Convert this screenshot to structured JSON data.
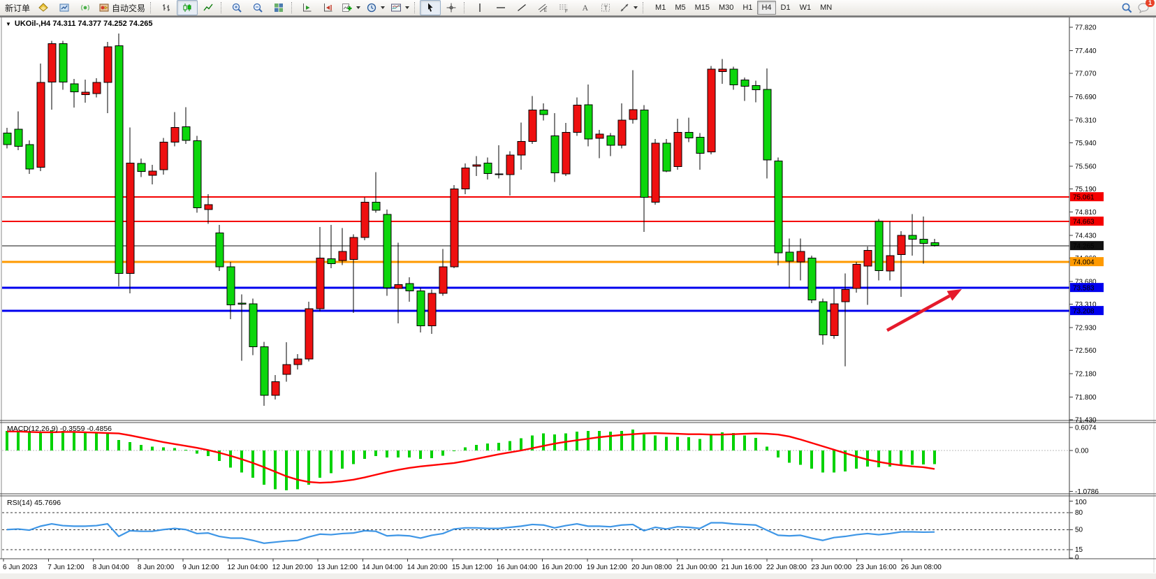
{
  "toolbar": {
    "new_order": "新订单",
    "autotrading": "自动交易",
    "notification_badge": "1",
    "timeframes": [
      {
        "label": "M1"
      },
      {
        "label": "M5"
      },
      {
        "label": "M15"
      },
      {
        "label": "M30"
      },
      {
        "label": "H1"
      },
      {
        "label": "H4",
        "active": true
      },
      {
        "label": "D1"
      },
      {
        "label": "W1"
      },
      {
        "label": "MN"
      }
    ]
  },
  "chart": {
    "title": "UKOil-,H4 74.311 74.377 74.252 74.265",
    "symbol": "UKOil-",
    "timeframe": "H4",
    "ohlc": {
      "open": "74.311",
      "high": "74.377",
      "low": "74.252",
      "close": "74.265"
    }
  },
  "price_axis": {
    "ticks": [
      "77.820",
      "77.440",
      "77.070",
      "76.690",
      "76.310",
      "75.940",
      "75.560",
      "75.190",
      "74.810",
      "74.430",
      "74.060",
      "73.680",
      "73.310",
      "72.930",
      "72.560",
      "72.180",
      "71.800",
      "71.430"
    ]
  },
  "overlay_lines": [
    {
      "price": 75.061,
      "label": "75.061",
      "color": "#f50000",
      "width": 2
    },
    {
      "price": 74.663,
      "label": "74.663",
      "color": "#f50000",
      "width": 2
    },
    {
      "price": 74.265,
      "label": "74.265",
      "color": "#111111",
      "width": 1
    },
    {
      "price": 74.004,
      "label": "74.004",
      "color": "#ff9a00",
      "width": 3
    },
    {
      "price": 73.583,
      "label": "73.583",
      "color": "#0000ee",
      "width": 3
    },
    {
      "price": 73.208,
      "label": "73.208",
      "color": "#0000ee",
      "width": 3
    }
  ],
  "time_axis": {
    "labels": [
      "6 Jun 2023",
      "7 Jun 12:00",
      "8 Jun 04:00",
      "8 Jun 20:00",
      "9 Jun 12:00",
      "12 Jun 04:00",
      "12 Jun 20:00",
      "13 Jun 12:00",
      "14 Jun 04:00",
      "14 Jun 20:00",
      "15 Jun 12:00",
      "16 Jun 04:00",
      "16 Jun 20:00",
      "19 Jun 12:00",
      "20 Jun 08:00",
      "21 Jun 00:00",
      "21 Jun 16:00",
      "22 Jun 08:00",
      "23 Jun 00:00",
      "23 Jun 16:00",
      "26 Jun 08:00"
    ]
  },
  "chart_data": {
    "type": "candlestick",
    "title": "UKOil- H4",
    "ylim": [
      71.43,
      77.82
    ],
    "colors": {
      "bull": "#ee1010",
      "bear": "#0cd60c",
      "outline": "#000000"
    },
    "candles": [
      [
        76.1,
        76.18,
        75.85,
        75.91
      ],
      [
        76.16,
        76.45,
        75.82,
        75.88
      ],
      [
        75.91,
        75.98,
        75.43,
        75.51
      ],
      [
        75.54,
        77.23,
        75.48,
        76.92
      ],
      [
        76.93,
        77.6,
        76.48,
        77.55
      ],
      [
        77.55,
        77.6,
        76.8,
        76.93
      ],
      [
        76.9,
        76.98,
        76.51,
        76.77
      ],
      [
        76.72,
        76.97,
        76.59,
        76.76
      ],
      [
        76.74,
        76.99,
        76.68,
        76.92
      ],
      [
        76.92,
        77.58,
        76.42,
        77.5
      ],
      [
        77.52,
        77.72,
        73.6,
        73.81
      ],
      [
        73.81,
        76.19,
        73.49,
        75.61
      ],
      [
        75.6,
        75.68,
        75.38,
        75.47
      ],
      [
        75.41,
        75.58,
        75.26,
        75.48
      ],
      [
        75.5,
        76.02,
        75.42,
        75.95
      ],
      [
        75.95,
        76.44,
        75.88,
        76.19
      ],
      [
        76.2,
        76.52,
        75.92,
        75.98
      ],
      [
        75.97,
        76.05,
        74.8,
        74.88
      ],
      [
        74.85,
        75.1,
        74.62,
        74.93
      ],
      [
        74.47,
        74.6,
        73.85,
        73.92
      ],
      [
        73.92,
        74.0,
        73.07,
        73.3
      ],
      [
        73.33,
        73.47,
        72.39,
        73.31
      ],
      [
        73.32,
        73.4,
        72.48,
        72.62
      ],
      [
        72.62,
        72.7,
        71.66,
        71.83
      ],
      [
        71.83,
        72.16,
        71.76,
        72.05
      ],
      [
        72.17,
        72.69,
        72.05,
        72.33
      ],
      [
        72.33,
        72.5,
        72.25,
        72.42
      ],
      [
        72.42,
        73.35,
        72.38,
        73.24
      ],
      [
        73.24,
        74.57,
        73.2,
        74.06
      ],
      [
        74.05,
        74.6,
        73.9,
        73.97
      ],
      [
        74.02,
        74.55,
        73.95,
        74.17
      ],
      [
        74.04,
        74.45,
        73.17,
        74.4
      ],
      [
        74.4,
        75.05,
        74.35,
        74.97
      ],
      [
        74.97,
        75.46,
        74.8,
        74.84
      ],
      [
        74.77,
        74.85,
        73.45,
        73.58
      ],
      [
        73.57,
        74.31,
        73.0,
        73.63
      ],
      [
        73.65,
        73.75,
        73.35,
        73.53
      ],
      [
        73.53,
        73.58,
        72.85,
        72.96
      ],
      [
        72.96,
        73.55,
        72.83,
        73.49
      ],
      [
        73.49,
        74.21,
        73.45,
        73.92
      ],
      [
        73.92,
        75.25,
        73.9,
        75.19
      ],
      [
        75.19,
        75.6,
        75.1,
        75.53
      ],
      [
        75.56,
        75.72,
        75.4,
        75.58
      ],
      [
        75.61,
        75.7,
        75.34,
        75.44
      ],
      [
        75.42,
        75.9,
        75.36,
        75.43
      ],
      [
        75.42,
        75.8,
        75.08,
        75.74
      ],
      [
        75.74,
        76.27,
        75.5,
        75.96
      ],
      [
        75.96,
        76.7,
        75.92,
        76.47
      ],
      [
        76.47,
        76.58,
        76.3,
        76.4
      ],
      [
        76.05,
        76.42,
        75.3,
        75.45
      ],
      [
        75.43,
        76.26,
        75.4,
        76.11
      ],
      [
        76.11,
        76.68,
        76.05,
        76.55
      ],
      [
        76.56,
        76.89,
        75.88,
        76.0
      ],
      [
        76.01,
        76.15,
        75.69,
        76.08
      ],
      [
        76.05,
        76.1,
        75.72,
        75.9
      ],
      [
        75.9,
        76.58,
        75.85,
        76.31
      ],
      [
        76.32,
        77.12,
        76.25,
        76.48
      ],
      [
        76.47,
        76.55,
        74.49,
        75.05
      ],
      [
        74.97,
        76.0,
        74.93,
        75.93
      ],
      [
        75.93,
        76.0,
        75.46,
        75.48
      ],
      [
        75.55,
        76.33,
        75.5,
        76.11
      ],
      [
        76.11,
        76.35,
        75.95,
        76.02
      ],
      [
        76.03,
        76.1,
        75.5,
        75.77
      ],
      [
        75.79,
        77.19,
        75.75,
        77.14
      ],
      [
        77.1,
        77.3,
        76.9,
        77.14
      ],
      [
        77.14,
        77.18,
        76.8,
        76.88
      ],
      [
        76.96,
        77.0,
        76.62,
        76.86
      ],
      [
        76.87,
        76.95,
        76.6,
        76.8
      ],
      [
        76.81,
        77.15,
        75.36,
        75.66
      ],
      [
        75.64,
        75.7,
        73.94,
        74.15
      ],
      [
        74.16,
        74.38,
        73.58,
        74.01
      ],
      [
        74.0,
        74.38,
        73.7,
        74.17
      ],
      [
        74.06,
        74.1,
        73.33,
        73.38
      ],
      [
        73.35,
        73.4,
        72.65,
        72.81
      ],
      [
        72.8,
        73.56,
        72.75,
        73.32
      ],
      [
        73.35,
        73.81,
        72.3,
        73.55
      ],
      [
        73.57,
        74.0,
        73.5,
        73.96
      ],
      [
        73.93,
        74.25,
        73.3,
        74.19
      ],
      [
        74.66,
        74.7,
        73.7,
        73.86
      ],
      [
        73.85,
        74.66,
        73.7,
        74.1
      ],
      [
        74.12,
        74.5,
        73.43,
        74.43
      ],
      [
        74.43,
        74.78,
        74.1,
        74.37
      ],
      [
        74.37,
        74.74,
        73.97,
        74.3
      ],
      [
        74.311,
        74.377,
        74.252,
        74.265
      ]
    ]
  },
  "macd": {
    "label": "MACD(12,26,9) -0.3559 -0.4856",
    "axis": [
      "0.6074",
      "0.00",
      "-1.0786"
    ],
    "hist_color": "#00d200",
    "signal_color": "#ff0000",
    "histogram": [
      0.52,
      0.5,
      0.48,
      0.5,
      0.53,
      0.52,
      0.49,
      0.47,
      0.46,
      0.48,
      0.28,
      0.22,
      0.15,
      0.1,
      0.08,
      0.06,
      0.02,
      -0.08,
      -0.15,
      -0.28,
      -0.45,
      -0.58,
      -0.72,
      -0.9,
      -1.02,
      -1.05,
      -1.02,
      -0.9,
      -0.72,
      -0.6,
      -0.48,
      -0.36,
      -0.22,
      -0.15,
      -0.18,
      -0.18,
      -0.18,
      -0.22,
      -0.2,
      -0.14,
      -0.02,
      0.08,
      0.15,
      0.18,
      0.2,
      0.25,
      0.32,
      0.4,
      0.45,
      0.42,
      0.45,
      0.5,
      0.52,
      0.52,
      0.5,
      0.52,
      0.55,
      0.42,
      0.4,
      0.36,
      0.36,
      0.35,
      0.3,
      0.42,
      0.48,
      0.46,
      0.4,
      0.33,
      0.1,
      -0.18,
      -0.32,
      -0.38,
      -0.48,
      -0.58,
      -0.58,
      -0.55,
      -0.48,
      -0.42,
      -0.44,
      -0.42,
      -0.4,
      -0.38,
      -0.37,
      -0.356
    ],
    "signal": [
      0.5,
      0.5,
      0.49,
      0.48,
      0.48,
      0.49,
      0.49,
      0.48,
      0.47,
      0.46,
      0.45,
      0.4,
      0.34,
      0.28,
      0.22,
      0.17,
      0.12,
      0.07,
      0.01,
      -0.06,
      -0.14,
      -0.23,
      -0.33,
      -0.44,
      -0.56,
      -0.68,
      -0.77,
      -0.83,
      -0.85,
      -0.84,
      -0.81,
      -0.77,
      -0.71,
      -0.64,
      -0.57,
      -0.51,
      -0.46,
      -0.42,
      -0.39,
      -0.36,
      -0.33,
      -0.28,
      -0.22,
      -0.16,
      -0.1,
      -0.05,
      0.0,
      0.06,
      0.12,
      0.18,
      0.23,
      0.27,
      0.31,
      0.35,
      0.38,
      0.41,
      0.43,
      0.45,
      0.46,
      0.45,
      0.44,
      0.43,
      0.43,
      0.42,
      0.42,
      0.43,
      0.44,
      0.45,
      0.44,
      0.42,
      0.37,
      0.29,
      0.2,
      0.11,
      0.02,
      -0.07,
      -0.16,
      -0.24,
      -0.3,
      -0.35,
      -0.39,
      -0.42,
      -0.44,
      -0.486
    ]
  },
  "rsi": {
    "label": "RSI(14) 45.7696",
    "axis": [
      "100",
      "80",
      "50",
      "15",
      "0"
    ],
    "levels": [
      80,
      50,
      15
    ],
    "color": "#3e96e6",
    "values": [
      50,
      51,
      49,
      56,
      60,
      57,
      56,
      56,
      57,
      60,
      38,
      48,
      47,
      47,
      50,
      52,
      50,
      43,
      44,
      38,
      35,
      35,
      31,
      26,
      28,
      30,
      31,
      37,
      42,
      41,
      43,
      44,
      48,
      47,
      39,
      40,
      39,
      35,
      40,
      43,
      51,
      53,
      53,
      52,
      52,
      54,
      56,
      59,
      58,
      53,
      57,
      60,
      56,
      56,
      55,
      58,
      59,
      48,
      54,
      51,
      55,
      54,
      52,
      62,
      62,
      60,
      59,
      58,
      49,
      40,
      39,
      40,
      35,
      31,
      36,
      38,
      41,
      43,
      41,
      43,
      46,
      46,
      45.5,
      45.77
    ]
  },
  "annotation_arrow": {
    "from": [
      1270,
      473
    ],
    "to": [
      1377,
      414
    ],
    "color": "#e51a2b"
  }
}
